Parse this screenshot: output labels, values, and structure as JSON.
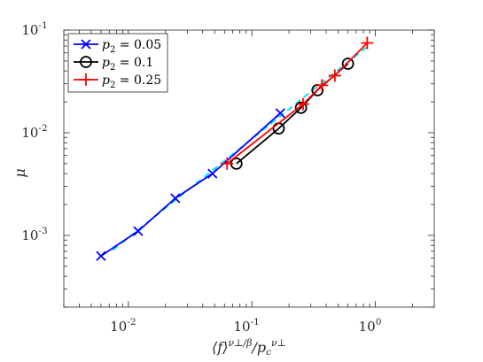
{
  "chart_data": {
    "type": "line",
    "xscale": "log",
    "yscale": "log",
    "xlim": [
      0.003,
      3
    ],
    "ylim": [
      0.0002,
      0.1
    ],
    "xlabel": "⟨f⟩^(ν⊥/β)/p_c^(ν⊥)",
    "ylabel": "μ",
    "grid": false,
    "legend_position": "top-left",
    "x_ticks": [
      {
        "value": 0.01,
        "base": "10",
        "exp": "-2"
      },
      {
        "value": 0.1,
        "base": "10",
        "exp": "-1"
      },
      {
        "value": 1,
        "base": "10",
        "exp": "0"
      }
    ],
    "y_ticks": [
      {
        "value": 0.001,
        "base": "10",
        "exp": "-3"
      },
      {
        "value": 0.01,
        "base": "10",
        "exp": "-2"
      },
      {
        "value": 0.1,
        "base": "10",
        "exp": "-1"
      }
    ],
    "series": [
      {
        "name": "p2 = 0.05",
        "legend_var": "p",
        "legend_sub": "2",
        "legend_val": "= 0.05",
        "color": "#0000ff",
        "marker": "x",
        "x": [
          0.006,
          0.012,
          0.024,
          0.048,
          0.17
        ],
        "y": [
          0.00063,
          0.0011,
          0.0023,
          0.004,
          0.0155
        ]
      },
      {
        "name": "p2 = 0.1",
        "legend_var": "p",
        "legend_sub": "2",
        "legend_val": "= 0.1",
        "color": "#000000",
        "marker": "o",
        "x": [
          0.075,
          0.165,
          0.25,
          0.34,
          0.6
        ],
        "y": [
          0.005,
          0.011,
          0.0175,
          0.026,
          0.047
        ]
      },
      {
        "name": "p2 = 0.25",
        "legend_var": "p",
        "legend_sub": "2",
        "legend_val": "= 0.25",
        "color": "#ff0000",
        "marker": "+",
        "x": [
          0.063,
          0.26,
          0.37,
          0.47,
          0.86
        ],
        "y": [
          0.005,
          0.019,
          0.029,
          0.036,
          0.075
        ]
      }
    ],
    "fit_line": {
      "color": "#00e5ee",
      "style": "dashed",
      "x": [
        0.0075,
        0.9
      ],
      "y": [
        0.00072,
        0.072
      ]
    }
  }
}
